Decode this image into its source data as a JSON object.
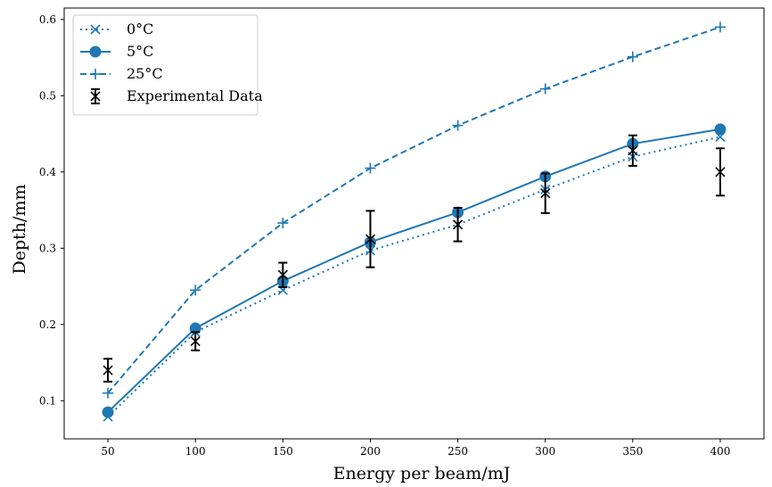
{
  "chart_data": {
    "type": "line",
    "title": "",
    "xlabel": "Energy per beam/mJ",
    "ylabel": "Depth/mm",
    "xlim": [
      25,
      425
    ],
    "ylim": [
      0.05,
      0.615
    ],
    "x_ticks": [
      50,
      100,
      150,
      200,
      250,
      300,
      350,
      400
    ],
    "y_ticks": [
      0.1,
      0.2,
      0.3,
      0.4,
      0.5,
      0.6
    ],
    "x_tick_labels": [
      "50",
      "100",
      "150",
      "200",
      "250",
      "300",
      "350",
      "400"
    ],
    "y_tick_labels": [
      "0.1",
      "0.2",
      "0.3",
      "0.4",
      "0.5",
      "0.6"
    ],
    "grid": false,
    "legend_position": "top-left",
    "color": "#1f77b4",
    "x": [
      50,
      100,
      150,
      200,
      250,
      300,
      350,
      400
    ],
    "series": [
      {
        "name": "0°C",
        "line": "dotted",
        "marker": "x",
        "values": [
          0.079,
          0.19,
          0.245,
          0.297,
          0.331,
          0.377,
          0.42,
          0.446
        ]
      },
      {
        "name": "5°C",
        "line": "solid",
        "marker": "circle",
        "values": [
          0.085,
          0.195,
          0.257,
          0.308,
          0.347,
          0.394,
          0.437,
          0.456
        ]
      },
      {
        "name": "25°C",
        "line": "dashed",
        "marker": "plus",
        "values": [
          0.11,
          0.245,
          0.333,
          0.405,
          0.461,
          0.509,
          0.551,
          0.59
        ]
      }
    ],
    "experimental": {
      "name": "Experimental Data",
      "color": "#000000",
      "x": [
        50,
        100,
        150,
        200,
        250,
        300,
        350,
        400
      ],
      "y": [
        0.14,
        0.178,
        0.265,
        0.312,
        0.331,
        0.372,
        0.428,
        0.4
      ],
      "yerr": [
        0.015,
        0.012,
        0.016,
        0.037,
        0.022,
        0.026,
        0.02,
        0.031
      ]
    }
  }
}
